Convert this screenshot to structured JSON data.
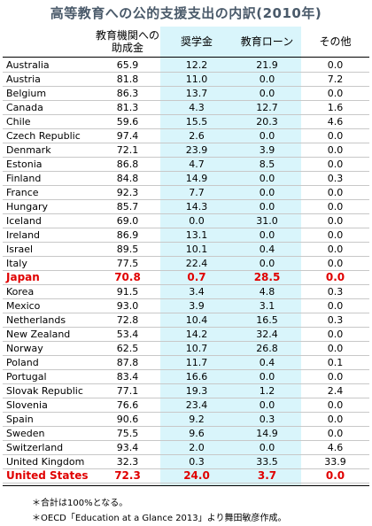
{
  "title": "高等教育への公的支援支出の内訳(2010年)",
  "chart_data": {
    "type": "table",
    "columns": [
      "",
      "教育機関への助成金",
      "奨学金",
      "教育ローン",
      "その他"
    ],
    "rows": [
      {
        "country": "Australia",
        "values": [
          "65.9",
          "12.2",
          "21.9",
          "0.0"
        ]
      },
      {
        "country": "Austria",
        "values": [
          "81.8",
          "11.0",
          "0.0",
          "7.2"
        ]
      },
      {
        "country": "Belgium",
        "values": [
          "86.3",
          "13.7",
          "0.0",
          "0.0"
        ]
      },
      {
        "country": "Canada",
        "values": [
          "81.3",
          "4.3",
          "12.7",
          "1.6"
        ]
      },
      {
        "country": "Chile",
        "values": [
          "59.6",
          "15.5",
          "20.3",
          "4.6"
        ]
      },
      {
        "country": "Czech Republic",
        "values": [
          "97.4",
          "2.6",
          "0.0",
          "0.0"
        ]
      },
      {
        "country": "Denmark",
        "values": [
          "72.1",
          "23.9",
          "3.9",
          "0.0"
        ]
      },
      {
        "country": "Estonia",
        "values": [
          "86.8",
          "4.7",
          "8.5",
          "0.0"
        ]
      },
      {
        "country": "Finland",
        "values": [
          "84.8",
          "14.9",
          "0.0",
          "0.3"
        ]
      },
      {
        "country": "France",
        "values": [
          "92.3",
          "7.7",
          "0.0",
          "0.0"
        ]
      },
      {
        "country": "Hungary",
        "values": [
          "85.7",
          "14.3",
          "0.0",
          "0.0"
        ]
      },
      {
        "country": "Iceland",
        "values": [
          "69.0",
          "0.0",
          "31.0",
          "0.0"
        ]
      },
      {
        "country": "Ireland",
        "values": [
          "86.9",
          "13.1",
          "0.0",
          "0.0"
        ]
      },
      {
        "country": "Israel",
        "values": [
          "89.5",
          "10.1",
          "0.4",
          "0.0"
        ]
      },
      {
        "country": "Italy",
        "values": [
          "77.5",
          "22.4",
          "0.0",
          "0.0"
        ]
      },
      {
        "country": "Japan",
        "values": [
          "70.8",
          "0.7",
          "28.5",
          "0.0"
        ],
        "highlight": true
      },
      {
        "country": "Korea",
        "values": [
          "91.5",
          "3.4",
          "4.8",
          "0.3"
        ]
      },
      {
        "country": "Mexico",
        "values": [
          "93.0",
          "3.9",
          "3.1",
          "0.0"
        ]
      },
      {
        "country": "Netherlands",
        "values": [
          "72.8",
          "10.4",
          "16.5",
          "0.3"
        ]
      },
      {
        "country": "New Zealand",
        "values": [
          "53.4",
          "14.2",
          "32.4",
          "0.0"
        ]
      },
      {
        "country": "Norway",
        "values": [
          "62.5",
          "10.7",
          "26.8",
          "0.0"
        ]
      },
      {
        "country": "Poland",
        "values": [
          "87.8",
          "11.7",
          "0.4",
          "0.1"
        ]
      },
      {
        "country": "Portugal",
        "values": [
          "83.4",
          "16.6",
          "0.0",
          "0.0"
        ]
      },
      {
        "country": "Slovak Republic",
        "values": [
          "77.1",
          "19.3",
          "1.2",
          "2.4"
        ]
      },
      {
        "country": "Slovenia",
        "values": [
          "76.6",
          "23.4",
          "0.0",
          "0.0"
        ]
      },
      {
        "country": "Spain",
        "values": [
          "90.6",
          "9.2",
          "0.3",
          "0.0"
        ]
      },
      {
        "country": "Sweden",
        "values": [
          "75.5",
          "9.6",
          "14.9",
          "0.0"
        ]
      },
      {
        "country": "Switzerland",
        "values": [
          "93.4",
          "2.0",
          "0.0",
          "4.6"
        ]
      },
      {
        "country": "United Kingdom",
        "values": [
          "32.3",
          "0.3",
          "33.5",
          "33.9"
        ]
      },
      {
        "country": "United States",
        "values": [
          "72.3",
          "24.0",
          "3.7",
          "0.0"
        ],
        "highlight": true
      }
    ]
  },
  "notes": [
    "＊合計は100%となる。",
    "＊OECD「Education at a Glance 2013」より舞田敏彦作成。"
  ],
  "colors": {
    "highlight_text": "#e00000",
    "shaded_column": "#d9f5fb",
    "title_text": "#4a5a6a"
  }
}
